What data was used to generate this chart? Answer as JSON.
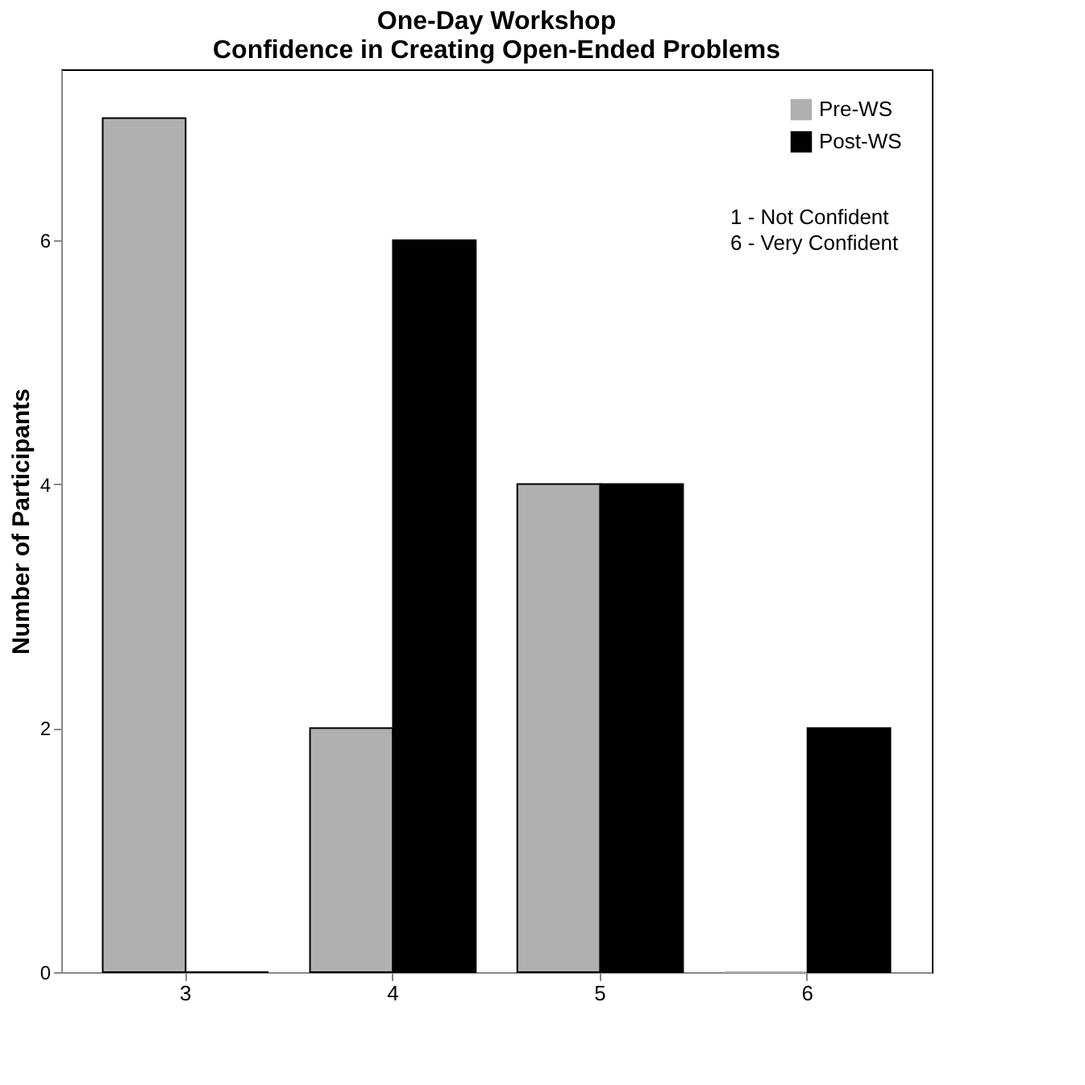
{
  "chart_data": {
    "type": "bar",
    "title": "One-Day Workshop\nConfidence in Creating Open-Ended Problems",
    "ylabel": "Number of Participants",
    "categories": [
      "3",
      "4",
      "5",
      "6"
    ],
    "series": [
      {
        "name": "Pre-WS",
        "color": "#b0b0b0",
        "values": [
          7,
          2,
          4,
          0
        ]
      },
      {
        "name": "Post-WS",
        "color": "#000000",
        "values": [
          0,
          6,
          4,
          2
        ]
      }
    ],
    "ylim": [
      0,
      7.4
    ],
    "yticks": [
      0,
      2,
      4,
      6
    ],
    "grid": false,
    "legend": "top right",
    "annotations": [
      "1 - Not Confident",
      "6 - Very Confident"
    ]
  }
}
